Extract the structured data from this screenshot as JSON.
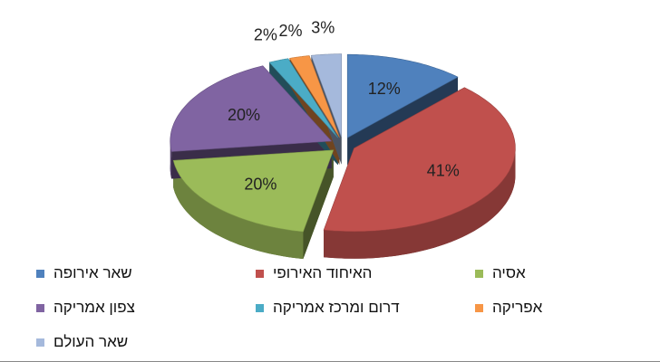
{
  "chart_data": {
    "type": "pie",
    "categories": [
      "שאר אירופה",
      "האיחוד האירופי",
      "אסיה",
      "צפון אמריקה",
      "דרום ומרכז אמריקה",
      "אפריקה",
      "שאר העולם"
    ],
    "values": [
      12,
      41,
      20,
      20,
      2,
      2,
      3
    ],
    "value_labels": [
      "12%",
      "41%",
      "20%",
      "20%",
      "2%",
      "2%",
      "3%"
    ],
    "colors": [
      "#4f81bd",
      "#c0504d",
      "#9bbb59",
      "#8064a2",
      "#4bacc6",
      "#f79646",
      "#a5b9dc"
    ]
  }
}
